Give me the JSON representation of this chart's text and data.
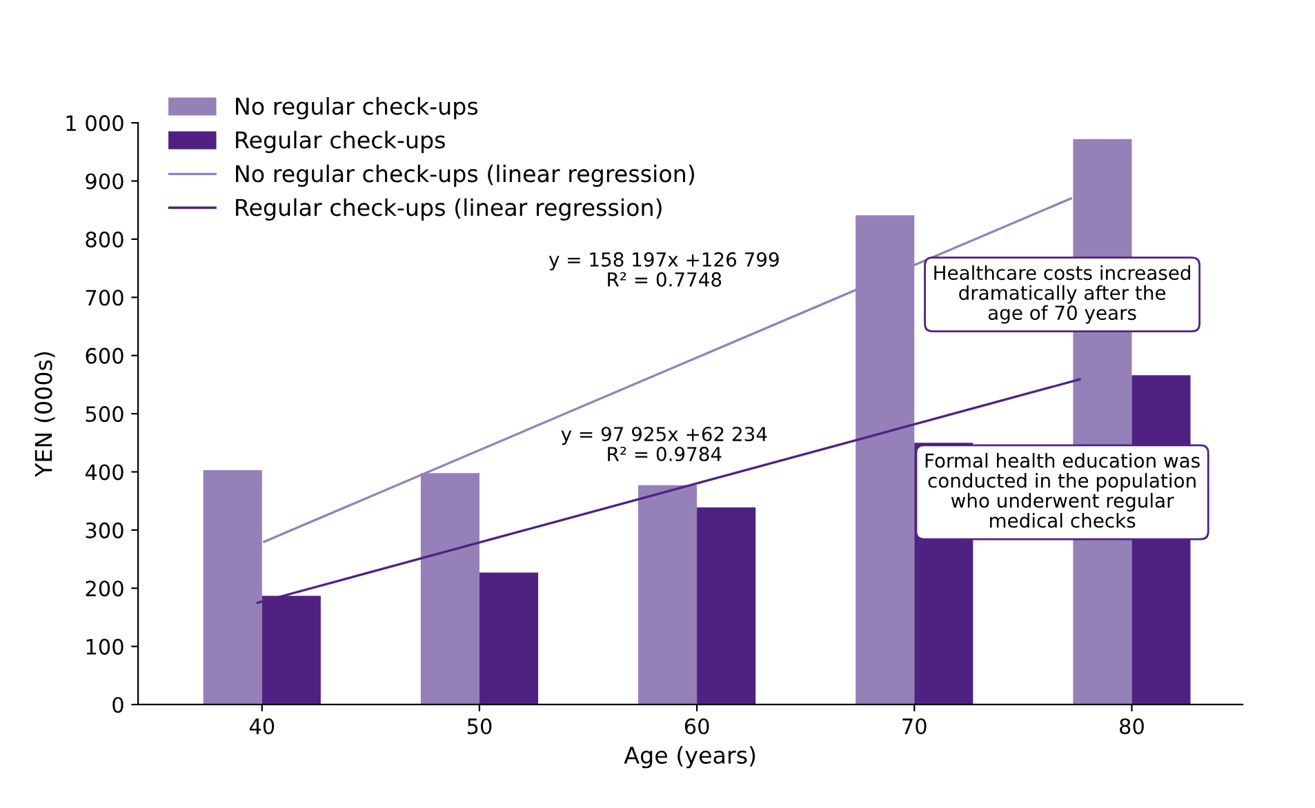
{
  "chart_data": {
    "type": "bar",
    "xlabel": "Age (years)",
    "ylabel": "YEN (000s)",
    "x": [
      40,
      50,
      60,
      70,
      80
    ],
    "xlim": [
      34.3,
      85.1
    ],
    "xticks": [
      40,
      50,
      60,
      70,
      80
    ],
    "ylim": [
      0,
      1000
    ],
    "yticks": [
      0,
      100,
      200,
      300,
      400,
      500,
      600,
      700,
      800,
      900,
      {
        "value": 1000,
        "label": "1 000"
      }
    ],
    "series": [
      {
        "name": "No regular check-ups",
        "color": "#9580b8",
        "values": [
          403,
          398,
          377,
          841,
          972
        ]
      },
      {
        "name": "Regular check-ups",
        "color": "#4f2282",
        "values": [
          187,
          227,
          339,
          450,
          566
        ]
      },
      {
        "name": "No regular check-ups (linear regression)",
        "type": "line",
        "color": "#9580b8",
        "x": [
          40.1,
          77.2
        ],
        "values": [
          280,
          870
        ]
      },
      {
        "name": "Regular check-ups (linear regression)",
        "type": "line",
        "color": "#4f2282",
        "x": [
          39.8,
          77.6
        ],
        "values": [
          175,
          559
        ]
      }
    ],
    "annotations": [
      "y = 158 197x +126 799\nR² = 0.7748",
      "y = 97 925x +62 234\nR² = 0.9784",
      "Healthcare costs increased\ndramatically after the\nage of 70 years",
      "Formal health education was\nconducted in the population\nwho underwent regular\nmedical checks"
    ],
    "legend": "top left",
    "grid": false
  }
}
